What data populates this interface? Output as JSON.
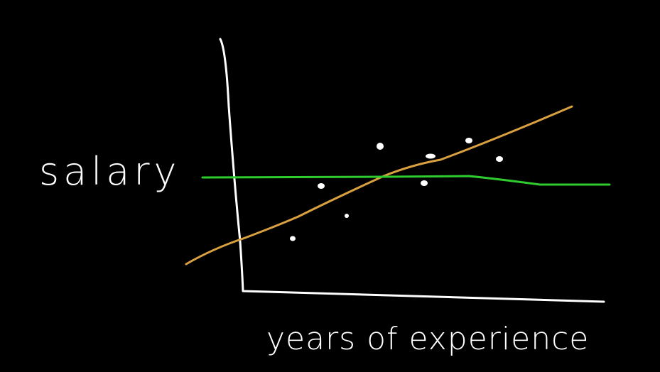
{
  "y_axis_label": "salary",
  "x_axis_label": "years of experience"
}
